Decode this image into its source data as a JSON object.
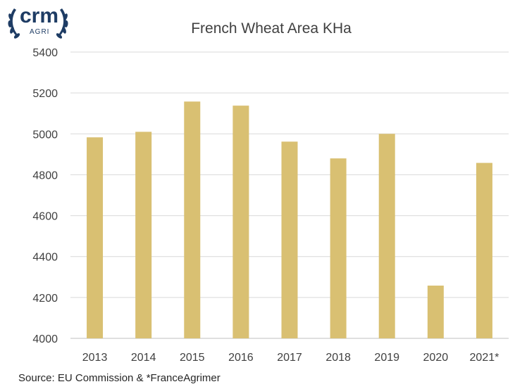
{
  "logo": {
    "brand": "crm",
    "sub": "AGRI",
    "color": "#1e3c64"
  },
  "source": "Source: EU Commission & *FranceAgrimer",
  "chart_data": {
    "type": "bar",
    "title": "French Wheat Area KHa",
    "xlabel": "",
    "ylabel": "",
    "categories": [
      "2013",
      "2014",
      "2015",
      "2016",
      "2017",
      "2018",
      "2019",
      "2020",
      "2021*"
    ],
    "values": [
      4983,
      5010,
      5158,
      5138,
      4962,
      4880,
      5000,
      4258,
      4858
    ],
    "ylim": [
      4000,
      5400
    ],
    "yticks": [
      4000,
      4200,
      4400,
      4600,
      4800,
      5000,
      5200,
      5400
    ],
    "grid": true,
    "bar_color": "#d9c072",
    "grid_color": "#d9d9d9"
  }
}
